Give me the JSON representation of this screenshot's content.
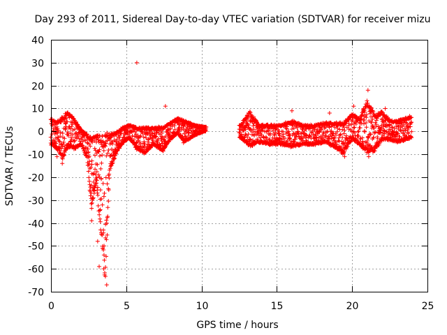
{
  "chart_data": {
    "type": "scatter",
    "title": "Day 293 of 2011, Sidereal Day-to-day VTEC variation (SDTVAR) for receiver mizu",
    "xlabel": "GPS time / hours",
    "ylabel": "SDTVAR / TECUs",
    "xlim": [
      0,
      25
    ],
    "ylim": [
      -70,
      40
    ],
    "xticks": [
      0,
      5,
      10,
      15,
      20,
      25
    ],
    "xtick_labels": [
      "0",
      "5",
      "10",
      "15",
      "20",
      "25"
    ],
    "yticks": [
      -70,
      -60,
      -50,
      -40,
      -30,
      -20,
      -10,
      0,
      10,
      20,
      30,
      40
    ],
    "ytick_labels": [
      "-70",
      "-60",
      "-50",
      "-40",
      "-30",
      "-20",
      "-10",
      "0",
      "10",
      "20",
      "30",
      "40"
    ],
    "grid": true,
    "marker": "+",
    "series_color": "#ff0000",
    "envelope": [
      {
        "x": 0.0,
        "hi": 6,
        "lo": -6
      },
      {
        "x": 0.2,
        "hi": 5,
        "lo": -7
      },
      {
        "x": 0.5,
        "hi": 5,
        "lo": -9
      },
      {
        "x": 0.8,
        "hi": 7,
        "lo": -13
      },
      {
        "x": 1.0,
        "hi": 9,
        "lo": -8
      },
      {
        "x": 1.3,
        "hi": 8,
        "lo": -7
      },
      {
        "x": 1.6,
        "hi": 5,
        "lo": -8
      },
      {
        "x": 2.0,
        "hi": 1,
        "lo": -6
      },
      {
        "x": 2.4,
        "hi": -1,
        "lo": -12
      },
      {
        "x": 2.7,
        "hi": -2,
        "lo": -35
      },
      {
        "x": 3.0,
        "hi": -1,
        "lo": -22
      },
      {
        "x": 3.3,
        "hi": -1,
        "lo": -45
      },
      {
        "x": 3.6,
        "hi": 0,
        "lo": -66
      },
      {
        "x": 3.9,
        "hi": -1,
        "lo": -18
      },
      {
        "x": 4.3,
        "hi": 0,
        "lo": -10
      },
      {
        "x": 4.8,
        "hi": 2,
        "lo": -5
      },
      {
        "x": 5.2,
        "hi": 3,
        "lo": -3
      },
      {
        "x": 5.7,
        "hi": 2,
        "lo": -8
      },
      {
        "x": 6.2,
        "hi": 2,
        "lo": -10
      },
      {
        "x": 6.8,
        "hi": 2,
        "lo": -6
      },
      {
        "x": 7.4,
        "hi": 2,
        "lo": -9
      },
      {
        "x": 7.9,
        "hi": 4,
        "lo": -4
      },
      {
        "x": 8.4,
        "hi": 6,
        "lo": -1
      },
      {
        "x": 8.9,
        "hi": 5,
        "lo": -5
      },
      {
        "x": 9.5,
        "hi": 3,
        "lo": -2
      },
      {
        "x": 10.2,
        "hi": 2,
        "lo": 0
      },
      {
        "x": 12.6,
        "hi": 3,
        "lo": -3
      },
      {
        "x": 13.2,
        "hi": 9,
        "lo": -7
      },
      {
        "x": 13.8,
        "hi": 3,
        "lo": -5
      },
      {
        "x": 14.5,
        "hi": 3,
        "lo": -6
      },
      {
        "x": 15.2,
        "hi": 3,
        "lo": -6
      },
      {
        "x": 16.0,
        "hi": 5,
        "lo": -7
      },
      {
        "x": 16.8,
        "hi": 3,
        "lo": -6
      },
      {
        "x": 17.5,
        "hi": 3,
        "lo": -6
      },
      {
        "x": 18.2,
        "hi": 4,
        "lo": -5
      },
      {
        "x": 18.8,
        "hi": 4,
        "lo": -7
      },
      {
        "x": 19.4,
        "hi": 4,
        "lo": -10
      },
      {
        "x": 20.0,
        "hi": 8,
        "lo": -4
      },
      {
        "x": 20.5,
        "hi": 6,
        "lo": -6
      },
      {
        "x": 21.0,
        "hi": 14,
        "lo": -10
      },
      {
        "x": 21.5,
        "hi": 8,
        "lo": -9
      },
      {
        "x": 22.0,
        "hi": 9,
        "lo": -4
      },
      {
        "x": 22.5,
        "hi": 5,
        "lo": -4
      },
      {
        "x": 23.0,
        "hi": 5,
        "lo": -5
      },
      {
        "x": 23.5,
        "hi": 6,
        "lo": -4
      },
      {
        "x": 23.95,
        "hi": 7,
        "lo": -3
      }
    ],
    "data_gaps": [
      [
        10.3,
        12.5
      ]
    ],
    "outliers": [
      {
        "x": 0.4,
        "y": -11
      },
      {
        "x": 0.75,
        "y": -14
      },
      {
        "x": 2.7,
        "y": -39
      },
      {
        "x": 3.1,
        "y": -48
      },
      {
        "x": 3.2,
        "y": -59
      },
      {
        "x": 3.5,
        "y": -60
      },
      {
        "x": 3.7,
        "y": -67
      },
      {
        "x": 5.7,
        "y": 30
      },
      {
        "x": 7.6,
        "y": 11
      },
      {
        "x": 8.8,
        "y": -5
      },
      {
        "x": 16.0,
        "y": 9
      },
      {
        "x": 18.5,
        "y": 8
      },
      {
        "x": 19.5,
        "y": -11
      },
      {
        "x": 20.1,
        "y": 11
      },
      {
        "x": 20.8,
        "y": 5
      },
      {
        "x": 21.05,
        "y": 18
      },
      {
        "x": 21.1,
        "y": -11
      },
      {
        "x": 22.2,
        "y": 10
      }
    ]
  }
}
